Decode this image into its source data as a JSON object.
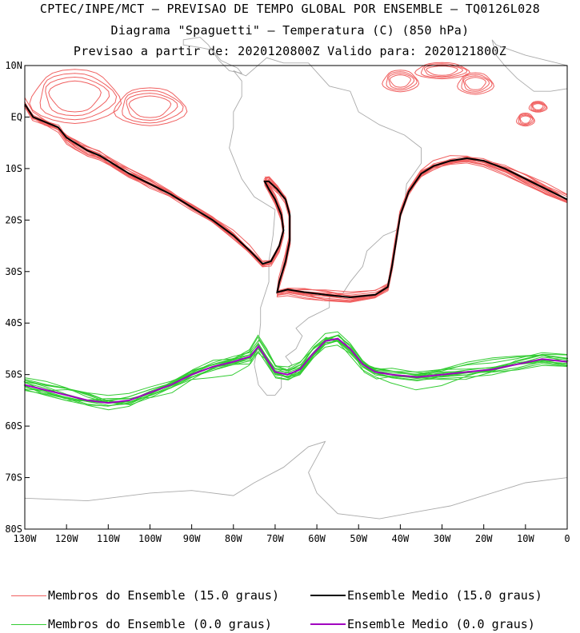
{
  "header": {
    "line1": "CPTEC/INPE/MCT – PREVISAO DE TEMPO GLOBAL POR ENSEMBLE – TQ0126L028",
    "line2": "Diagrama \"Spaguetti\" – Temperatura (C) (850 hPa)",
    "line3": "Previsao a partir de: 2020120800Z  Valido para: 2020121800Z"
  },
  "chart_data": {
    "type": "line",
    "title": "Diagrama \"Spaguetti\" – Temperatura (C) (850 hPa)",
    "xlabel": "",
    "ylabel": "",
    "xlim": [
      -130,
      0
    ],
    "ylim": [
      -80,
      10
    ],
    "x_ticks": [
      {
        "value": -130,
        "label": "130W"
      },
      {
        "value": -120,
        "label": "120W"
      },
      {
        "value": -110,
        "label": "110W"
      },
      {
        "value": -100,
        "label": "100W"
      },
      {
        "value": -90,
        "label": "90W"
      },
      {
        "value": -80,
        "label": "80W"
      },
      {
        "value": -70,
        "label": "70W"
      },
      {
        "value": -60,
        "label": "60W"
      },
      {
        "value": -50,
        "label": "50W"
      },
      {
        "value": -40,
        "label": "40W"
      },
      {
        "value": -30,
        "label": "30W"
      },
      {
        "value": -20,
        "label": "20W"
      },
      {
        "value": -10,
        "label": "10W"
      },
      {
        "value": 0,
        "label": "0"
      }
    ],
    "y_ticks": [
      {
        "value": 10,
        "label": "10N"
      },
      {
        "value": 0,
        "label": "EQ"
      },
      {
        "value": -10,
        "label": "10S"
      },
      {
        "value": -20,
        "label": "20S"
      },
      {
        "value": -30,
        "label": "30S"
      },
      {
        "value": -40,
        "label": "40S"
      },
      {
        "value": -50,
        "label": "50S"
      },
      {
        "value": -60,
        "label": "60S"
      },
      {
        "value": -70,
        "label": "70S"
      },
      {
        "value": -80,
        "label": "80S"
      }
    ],
    "series": [
      {
        "name": "Ensemble Medio (15.0 graus)",
        "color": "#000000",
        "points": [
          [
            -130,
            2.5
          ],
          [
            -128,
            0
          ],
          [
            -125,
            -1
          ],
          [
            -122,
            -2
          ],
          [
            -120,
            -4
          ],
          [
            -118,
            -5
          ],
          [
            -115,
            -6.5
          ],
          [
            -112,
            -7.5
          ],
          [
            -109,
            -9
          ],
          [
            -105,
            -11
          ],
          [
            -100,
            -13
          ],
          [
            -95,
            -15
          ],
          [
            -90,
            -17.5
          ],
          [
            -85,
            -20
          ],
          [
            -80,
            -23
          ],
          [
            -76,
            -26
          ],
          [
            -73,
            -28.5
          ],
          [
            -71,
            -28
          ],
          [
            -69,
            -25
          ],
          [
            -68,
            -22
          ],
          [
            -68.5,
            -19
          ],
          [
            -70,
            -16
          ],
          [
            -71.5,
            -14
          ],
          [
            -72.5,
            -12.5
          ],
          [
            -71.5,
            -12.5
          ],
          [
            -69.5,
            -14
          ],
          [
            -67.5,
            -16
          ],
          [
            -66.5,
            -19
          ],
          [
            -66.5,
            -24
          ],
          [
            -67.5,
            -28
          ],
          [
            -69,
            -32
          ],
          [
            -69.5,
            -34
          ],
          [
            -67,
            -33.5
          ],
          [
            -63,
            -34
          ],
          [
            -58,
            -34.5
          ],
          [
            -52,
            -35
          ],
          [
            -46,
            -34.5
          ],
          [
            -43,
            -33
          ],
          [
            -42,
            -29
          ],
          [
            -41,
            -24
          ],
          [
            -40,
            -19
          ],
          [
            -38,
            -14.5
          ],
          [
            -35,
            -11
          ],
          [
            -32,
            -9.5
          ],
          [
            -28,
            -8.5
          ],
          [
            -24,
            -8
          ],
          [
            -20,
            -8.5
          ],
          [
            -15,
            -10
          ],
          [
            -10,
            -12
          ],
          [
            -5,
            -14
          ],
          [
            0,
            -16
          ]
        ]
      },
      {
        "name": "Ensemble Medio (0.0 graus)",
        "color": "#a000c0",
        "points": [
          [
            -130,
            -52
          ],
          [
            -125,
            -53
          ],
          [
            -120,
            -54
          ],
          [
            -115,
            -55
          ],
          [
            -110,
            -55.5
          ],
          [
            -105,
            -55
          ],
          [
            -100,
            -53.5
          ],
          [
            -95,
            -52
          ],
          [
            -90,
            -50
          ],
          [
            -85,
            -48.5
          ],
          [
            -80,
            -47.5
          ],
          [
            -76,
            -46.5
          ],
          [
            -74,
            -44.5
          ],
          [
            -72,
            -47
          ],
          [
            -70,
            -49.5
          ],
          [
            -67,
            -50
          ],
          [
            -64,
            -49
          ],
          [
            -61,
            -46
          ],
          [
            -58,
            -43.5
          ],
          [
            -55,
            -43
          ],
          [
            -52,
            -45
          ],
          [
            -49,
            -48
          ],
          [
            -46,
            -49.5
          ],
          [
            -42,
            -50
          ],
          [
            -36,
            -50.5
          ],
          [
            -30,
            -50
          ],
          [
            -24,
            -49.5
          ],
          [
            -18,
            -49
          ],
          [
            -12,
            -48
          ],
          [
            -6,
            -47
          ],
          [
            0,
            -47.5
          ]
        ]
      }
    ],
    "legend": [
      {
        "label": "Membros do Ensemble (15.0 graus)",
        "color": "#f06060",
        "position": "bottom-left"
      },
      {
        "label": "Ensemble Medio (15.0 graus)",
        "color": "#000000",
        "position": "bottom-right"
      },
      {
        "label": "Membros do Ensemble (0.0 graus)",
        "color": "#33cc33",
        "position": "bottom-left"
      },
      {
        "label": "Ensemble Medio (0.0 graus)",
        "color": "#a000c0",
        "position": "bottom-right"
      }
    ],
    "annotations": [
      "Ensemble members plotted as multiple spaghetti contours around each mean line"
    ]
  },
  "colors": {
    "member_15": "#f06060",
    "mean_15": "#000000",
    "member_0": "#33cc33",
    "mean_0": "#a000c0",
    "map": "#aaaaaa"
  }
}
